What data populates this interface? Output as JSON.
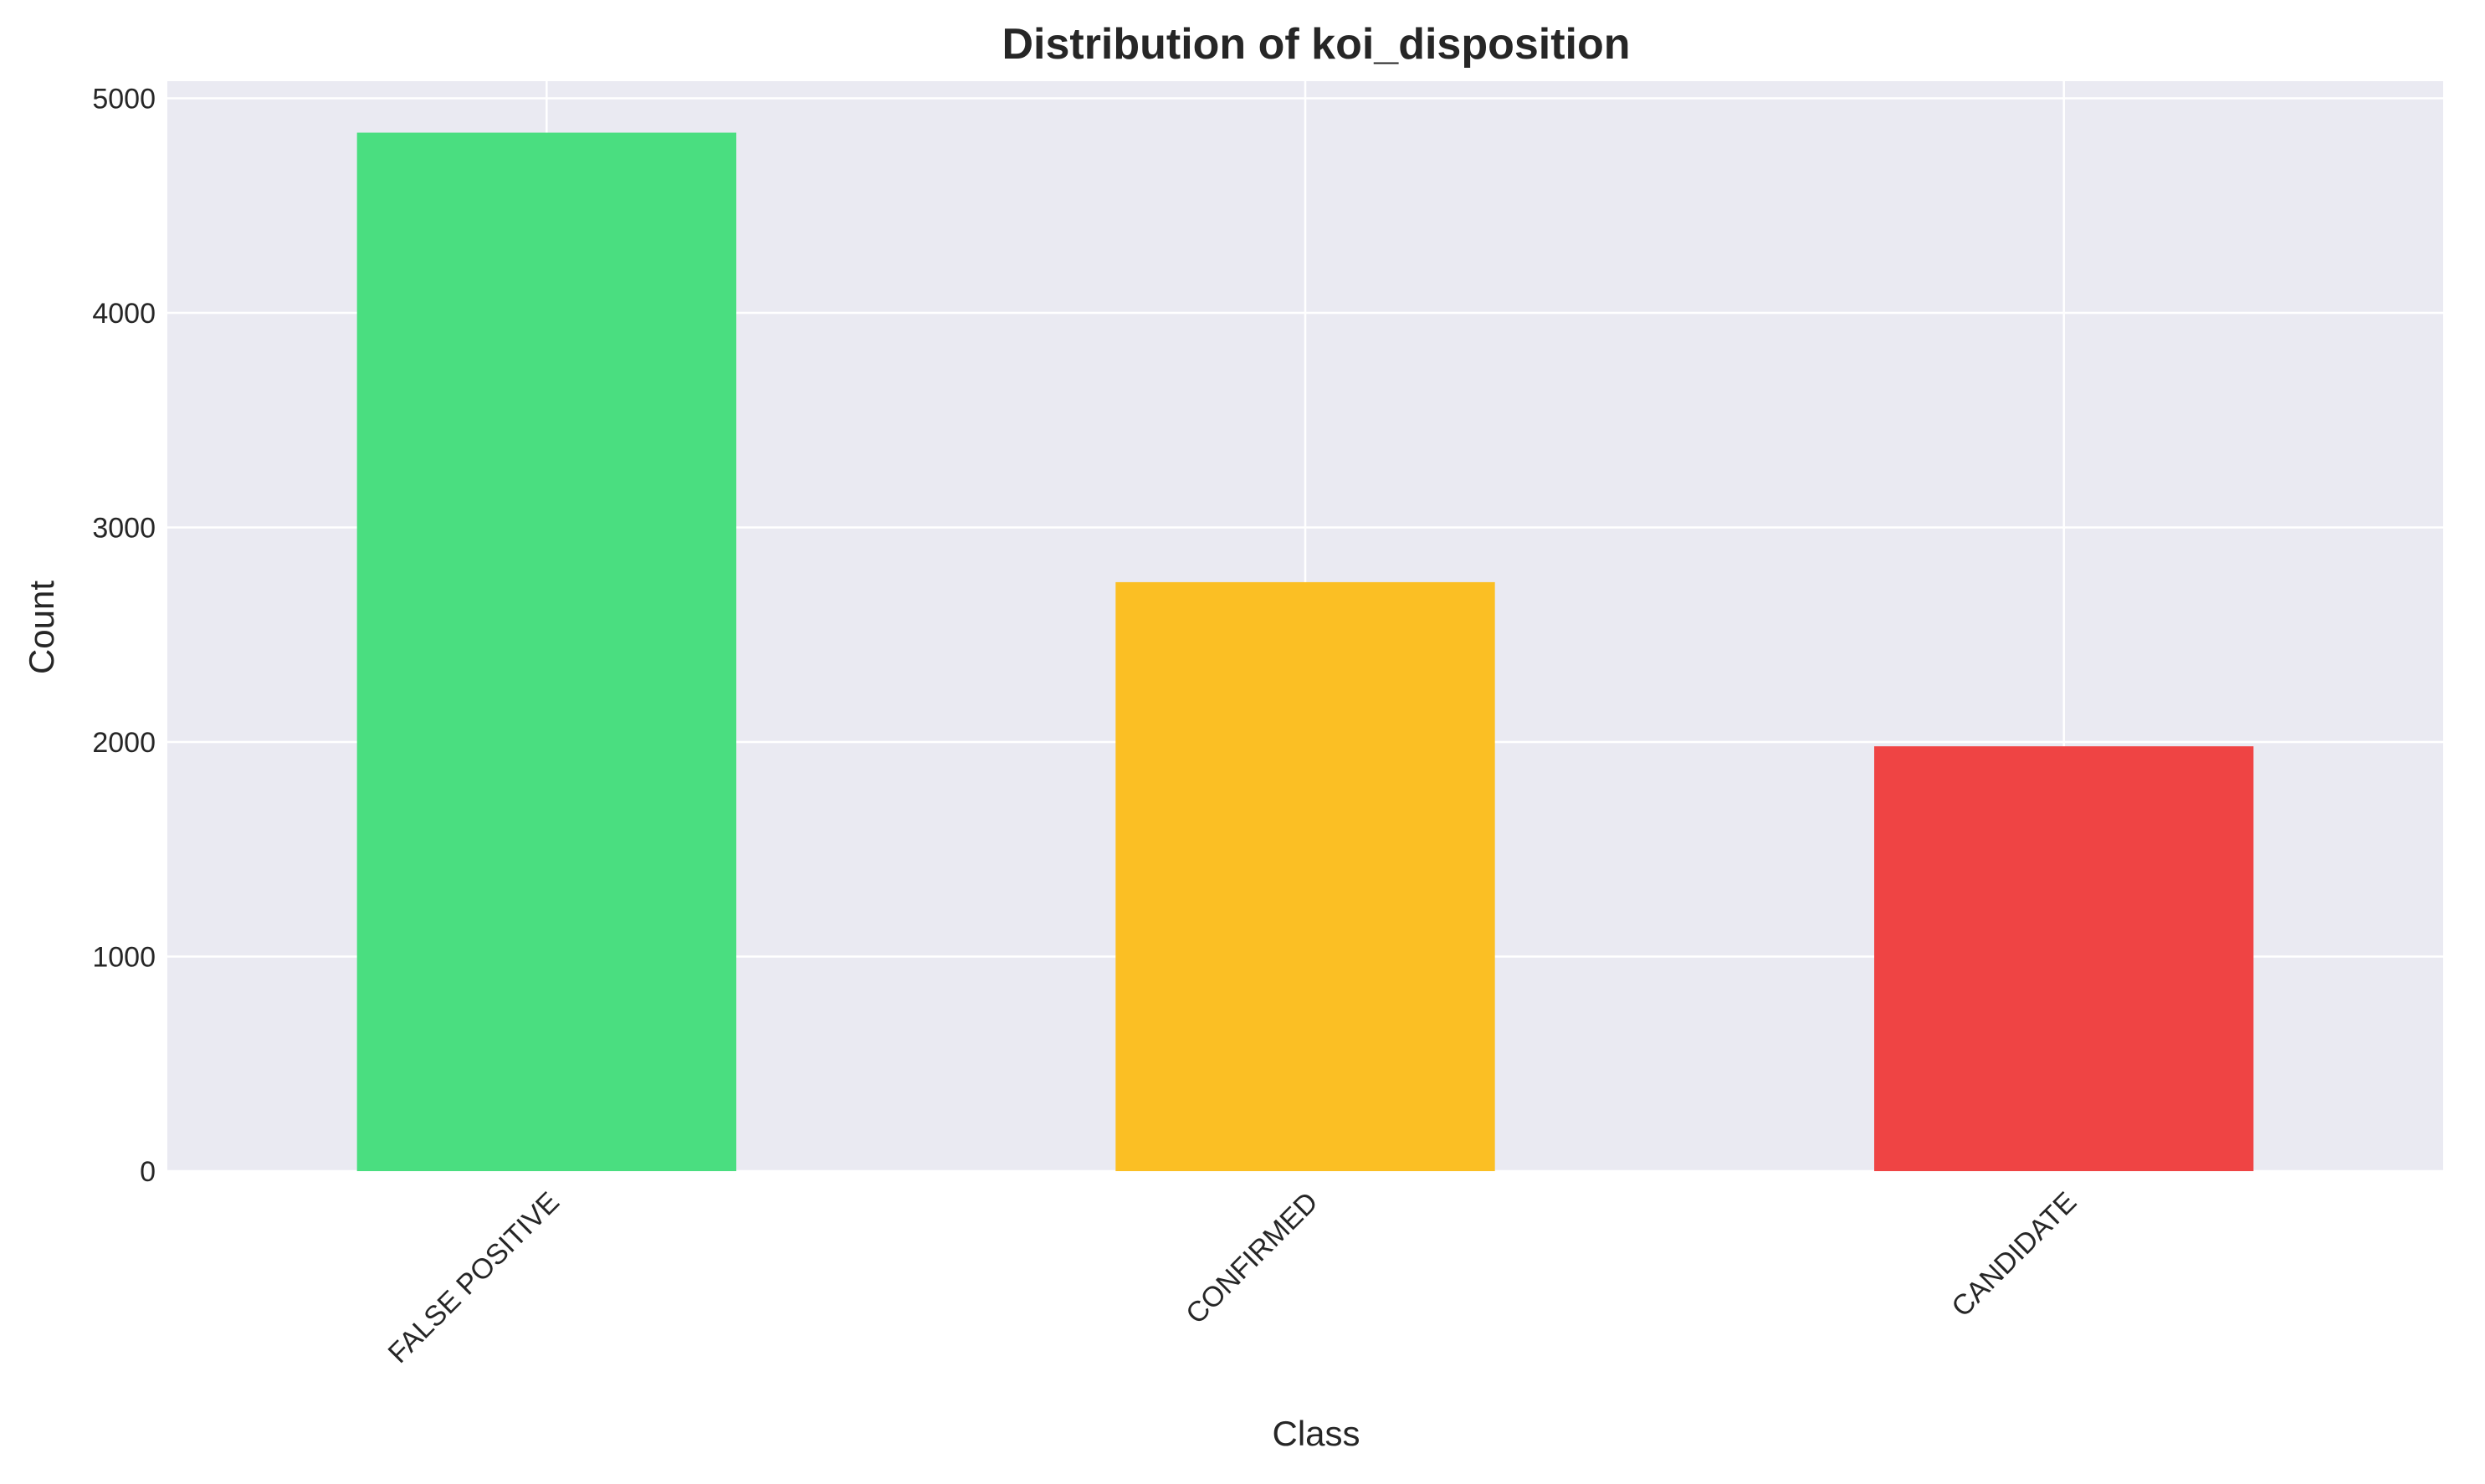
{
  "chart_data": {
    "type": "bar",
    "title": "Distribution of koi_disposition",
    "xlabel": "Class",
    "ylabel": "Count",
    "categories": [
      "FALSE POSITIVE",
      "CONFIRMED",
      "CANDIDATE"
    ],
    "values": [
      4840,
      2745,
      1980
    ],
    "ylim": [
      0,
      5080
    ],
    "yticks": [
      0,
      1000,
      2000,
      3000,
      4000,
      5000
    ],
    "ytick_labels": [
      "0",
      "1000",
      "2000",
      "3000",
      "4000",
      "5000"
    ],
    "grid": true,
    "colors": {
      "background": "#eaeaf2",
      "grid": "#ffffff",
      "bars": [
        "#4ade80",
        "#fbbf24",
        "#ef4444"
      ]
    }
  }
}
